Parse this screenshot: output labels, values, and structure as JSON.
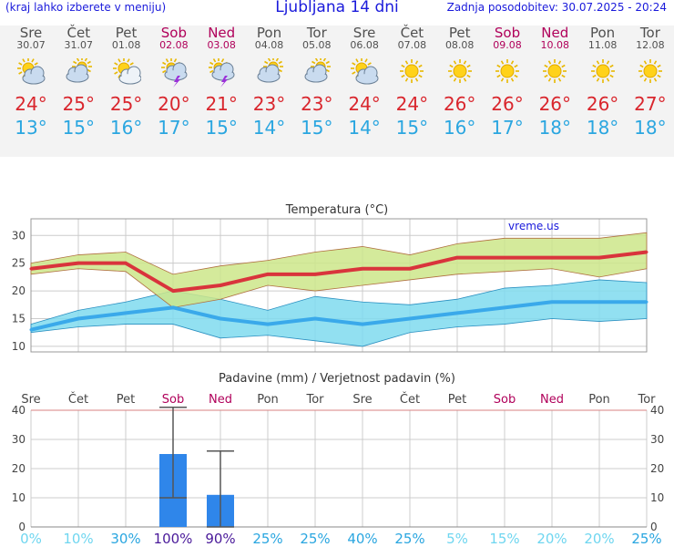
{
  "header": {
    "left_note": "(kraj lahko izberete v meniju)",
    "title": "Ljubljana 14 dni",
    "updated": "Zadnja posodobitev: 30.07.2025 - 20:24"
  },
  "days": [
    {
      "name": "Sre",
      "date": "30.07",
      "icon": "partly-cloudy-icon",
      "max": "24°",
      "min": "13°",
      "weekend": false
    },
    {
      "name": "Čet",
      "date": "31.07",
      "icon": "cloudy-sun-icon",
      "max": "25°",
      "min": "15°",
      "weekend": false
    },
    {
      "name": "Pet",
      "date": "01.08",
      "icon": "sun-cloud-icon",
      "max": "25°",
      "min": "16°",
      "weekend": false
    },
    {
      "name": "Sob",
      "date": "02.08",
      "icon": "thunderstorm-icon",
      "max": "20°",
      "min": "17°",
      "weekend": true
    },
    {
      "name": "Ned",
      "date": "03.08",
      "icon": "thunderstorm-icon",
      "max": "21°",
      "min": "15°",
      "weekend": true
    },
    {
      "name": "Pon",
      "date": "04.08",
      "icon": "cloudy-sun-icon",
      "max": "23°",
      "min": "14°",
      "weekend": false
    },
    {
      "name": "Tor",
      "date": "05.08",
      "icon": "cloudy-sun-icon",
      "max": "23°",
      "min": "15°",
      "weekend": false
    },
    {
      "name": "Sre",
      "date": "06.08",
      "icon": "partly-cloudy-icon",
      "max": "24°",
      "min": "14°",
      "weekend": false
    },
    {
      "name": "Čet",
      "date": "07.08",
      "icon": "sun-icon",
      "max": "24°",
      "min": "15°",
      "weekend": false
    },
    {
      "name": "Pet",
      "date": "08.08",
      "icon": "sun-icon",
      "max": "26°",
      "min": "16°",
      "weekend": false
    },
    {
      "name": "Sob",
      "date": "09.08",
      "icon": "sun-icon",
      "max": "26°",
      "min": "17°",
      "weekend": true
    },
    {
      "name": "Ned",
      "date": "10.08",
      "icon": "sun-icon",
      "max": "26°",
      "min": "18°",
      "weekend": true
    },
    {
      "name": "Pon",
      "date": "11.08",
      "icon": "sun-icon",
      "max": "26°",
      "min": "18°",
      "weekend": false
    },
    {
      "name": "Tor",
      "date": "12.08",
      "icon": "sun-icon",
      "max": "27°",
      "min": "18°",
      "weekend": false
    }
  ],
  "colors": {
    "max_line": "#d9343c",
    "min_line": "#3aa9ea",
    "max_band": "#cce68a",
    "min_band": "#7fdbee",
    "bar": "#2f86ea",
    "weekend": "#b0005a",
    "axis": "#404040",
    "prob_low": "#6fd6f0",
    "prob_mid": "#2aa6e0",
    "prob_high": "#4a1a9a"
  },
  "chart_data": [
    {
      "type": "line",
      "title": "Temperatura (°C)",
      "watermark": "vreme.us",
      "categories": [
        "Sre",
        "Čet",
        "Pet",
        "Sob",
        "Ned",
        "Pon",
        "Tor",
        "Sre",
        "Čet",
        "Pet",
        "Sob",
        "Ned",
        "Pon",
        "Tor"
      ],
      "ylim": [
        9,
        33
      ],
      "yticks": [
        10,
        15,
        20,
        25,
        30
      ],
      "grid": true,
      "series": [
        {
          "values": [
            24,
            25,
            25,
            20,
            21,
            23,
            23,
            24,
            24,
            26,
            26,
            26,
            26,
            27
          ],
          "band_upper": [
            25,
            26.5,
            27,
            23,
            24.5,
            25.5,
            27,
            28,
            26.5,
            28.5,
            29.5,
            29.5,
            29.5,
            30.5
          ],
          "band_lower": [
            23,
            24,
            23.5,
            17,
            18.5,
            21,
            20,
            21,
            22,
            23,
            23.5,
            24,
            22.5,
            24
          ]
        },
        {
          "values": [
            13,
            15,
            16,
            17,
            15,
            14,
            15,
            14,
            15,
            16,
            17,
            18,
            18,
            18
          ],
          "band_upper": [
            14,
            16.5,
            18,
            20,
            18.5,
            16.5,
            19,
            18,
            17.5,
            18.5,
            20.5,
            21,
            22,
            21.5
          ],
          "band_lower": [
            12.5,
            13.5,
            14,
            14,
            11.5,
            12,
            11,
            10,
            12.5,
            13.5,
            14,
            15,
            14.5,
            15
          ]
        }
      ]
    },
    {
      "type": "bar",
      "title": "Padavine (mm) / Verjetnost padavin (%)",
      "categories": [
        "Sre",
        "Čet",
        "Pet",
        "Sob",
        "Ned",
        "Pon",
        "Tor",
        "Sre",
        "Čet",
        "Pet",
        "Sob",
        "Ned",
        "Pon",
        "Tor"
      ],
      "values": [
        0,
        0,
        0,
        25,
        11,
        0,
        0,
        0,
        0,
        0,
        0,
        0,
        0,
        0
      ],
      "error_high": [
        null,
        null,
        null,
        41,
        26,
        null,
        null,
        null,
        null,
        null,
        null,
        null,
        null,
        null
      ],
      "error_low": [
        null,
        null,
        null,
        10,
        0,
        null,
        null,
        null,
        null,
        null,
        null,
        null,
        null,
        null
      ],
      "probability": [
        "0%",
        "10%",
        "30%",
        "100%",
        "90%",
        "25%",
        "25%",
        "40%",
        "25%",
        "5%",
        "15%",
        "20%",
        "20%",
        "25%"
      ],
      "probability_values": [
        0,
        10,
        30,
        100,
        90,
        25,
        25,
        40,
        25,
        5,
        15,
        20,
        20,
        25
      ],
      "ylim": [
        0,
        40
      ],
      "yticks": [
        0,
        10,
        20,
        30,
        40
      ]
    }
  ]
}
